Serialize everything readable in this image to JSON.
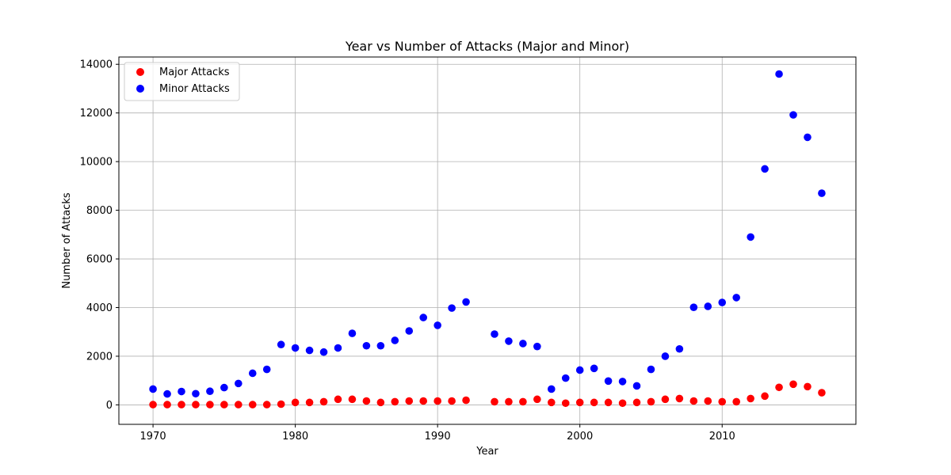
{
  "chart_data": {
    "type": "scatter",
    "title": "Year vs Number of Attacks (Major and Minor)",
    "xlabel": "Year",
    "ylabel": "Number of Attacks",
    "xlim": [
      1967.6,
      2019.4
    ],
    "ylim": [
      -800,
      14300
    ],
    "xticks": [
      1970,
      1980,
      1990,
      2000,
      2010
    ],
    "yticks": [
      0,
      2000,
      4000,
      6000,
      8000,
      10000,
      12000,
      14000
    ],
    "grid": true,
    "legend_position": "upper left",
    "series": [
      {
        "name": "Major Attacks",
        "color": "#ff0000",
        "points": [
          [
            1970,
            10
          ],
          [
            1971,
            10
          ],
          [
            1972,
            10
          ],
          [
            1973,
            10
          ],
          [
            1974,
            10
          ],
          [
            1975,
            10
          ],
          [
            1976,
            10
          ],
          [
            1977,
            10
          ],
          [
            1978,
            10
          ],
          [
            1979,
            30
          ],
          [
            1980,
            100
          ],
          [
            1981,
            100
          ],
          [
            1982,
            130
          ],
          [
            1983,
            230
          ],
          [
            1984,
            230
          ],
          [
            1985,
            160
          ],
          [
            1986,
            100
          ],
          [
            1987,
            130
          ],
          [
            1988,
            160
          ],
          [
            1989,
            160
          ],
          [
            1990,
            160
          ],
          [
            1991,
            160
          ],
          [
            1992,
            190
          ],
          [
            1994,
            130
          ],
          [
            1995,
            130
          ],
          [
            1996,
            130
          ],
          [
            1997,
            230
          ],
          [
            1998,
            100
          ],
          [
            1999,
            70
          ],
          [
            2000,
            100
          ],
          [
            2001,
            100
          ],
          [
            2002,
            100
          ],
          [
            2003,
            70
          ],
          [
            2004,
            100
          ],
          [
            2005,
            130
          ],
          [
            2006,
            230
          ],
          [
            2007,
            260
          ],
          [
            2008,
            160
          ],
          [
            2009,
            160
          ],
          [
            2010,
            130
          ],
          [
            2011,
            130
          ],
          [
            2012,
            260
          ],
          [
            2013,
            360
          ],
          [
            2014,
            720
          ],
          [
            2015,
            850
          ],
          [
            2016,
            750
          ],
          [
            2017,
            500
          ]
        ]
      },
      {
        "name": "Minor Attacks",
        "color": "#0000ff",
        "points": [
          [
            1970,
            650
          ],
          [
            1971,
            450
          ],
          [
            1972,
            550
          ],
          [
            1973,
            460
          ],
          [
            1974,
            560
          ],
          [
            1975,
            710
          ],
          [
            1976,
            880
          ],
          [
            1977,
            1300
          ],
          [
            1978,
            1460
          ],
          [
            1979,
            2480
          ],
          [
            1980,
            2340
          ],
          [
            1981,
            2240
          ],
          [
            1982,
            2170
          ],
          [
            1983,
            2340
          ],
          [
            1984,
            2940
          ],
          [
            1985,
            2430
          ],
          [
            1986,
            2430
          ],
          [
            1987,
            2650
          ],
          [
            1988,
            3040
          ],
          [
            1989,
            3590
          ],
          [
            1990,
            3270
          ],
          [
            1991,
            3980
          ],
          [
            1992,
            4230
          ],
          [
            1994,
            2910
          ],
          [
            1995,
            2620
          ],
          [
            1996,
            2520
          ],
          [
            1997,
            2400
          ],
          [
            1998,
            650
          ],
          [
            1999,
            1100
          ],
          [
            2000,
            1430
          ],
          [
            2001,
            1500
          ],
          [
            2002,
            980
          ],
          [
            2003,
            960
          ],
          [
            2004,
            780
          ],
          [
            2005,
            1460
          ],
          [
            2006,
            2000
          ],
          [
            2007,
            2300
          ],
          [
            2008,
            4010
          ],
          [
            2009,
            4050
          ],
          [
            2010,
            4210
          ],
          [
            2011,
            4410
          ],
          [
            2012,
            6900
          ],
          [
            2013,
            9700
          ],
          [
            2014,
            13600
          ],
          [
            2015,
            11920
          ],
          [
            2016,
            11000
          ],
          [
            2017,
            8700
          ]
        ]
      }
    ]
  }
}
